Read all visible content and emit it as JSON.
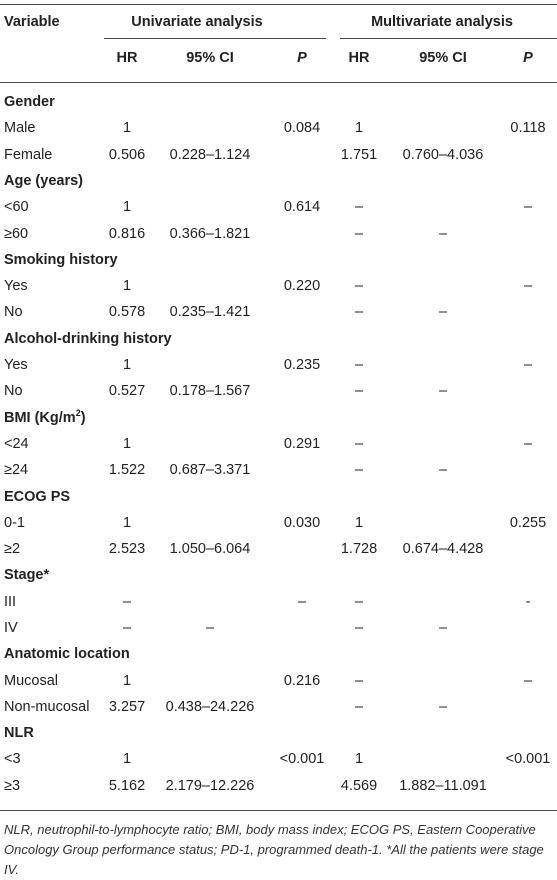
{
  "header": {
    "variable": "Variable",
    "univariate": "Univariate analysis",
    "multivariate": "Multivariate analysis",
    "hr": "HR",
    "ci": "95% CI",
    "p": "P"
  },
  "groups": [
    {
      "title": "Gender",
      "rows": [
        {
          "label": "Male",
          "u_hr": "1",
          "u_ci": "",
          "u_p": "0.084",
          "m_hr": "1",
          "m_ci": "",
          "m_p": "0.118"
        },
        {
          "label": "Female",
          "u_hr": "0.506",
          "u_ci": "0.228–1.124",
          "u_p": "",
          "m_hr": "1.751",
          "m_ci": "0.760–4.036",
          "m_p": ""
        }
      ]
    },
    {
      "title": "Age (years)",
      "rows": [
        {
          "label": "<60",
          "u_hr": "1",
          "u_ci": "",
          "u_p": "0.614",
          "m_hr": "–",
          "m_ci": "",
          "m_p": "–"
        },
        {
          "label": "≥60",
          "u_hr": "0.816",
          "u_ci": "0.366–1.821",
          "u_p": "",
          "m_hr": "–",
          "m_ci": "–",
          "m_p": ""
        }
      ]
    },
    {
      "title": "Smoking history",
      "rows": [
        {
          "label": "Yes",
          "u_hr": "1",
          "u_ci": "",
          "u_p": "0.220",
          "m_hr": "–",
          "m_ci": "",
          "m_p": "–"
        },
        {
          "label": "No",
          "u_hr": "0.578",
          "u_ci": "0.235–1.421",
          "u_p": "",
          "m_hr": "–",
          "m_ci": "–",
          "m_p": ""
        }
      ]
    },
    {
      "title": "Alcohol-drinking history",
      "rows": [
        {
          "label": "Yes",
          "u_hr": "1",
          "u_ci": "",
          "u_p": "0.235",
          "m_hr": "–",
          "m_ci": "",
          "m_p": "–"
        },
        {
          "label": "No",
          "u_hr": "0.527",
          "u_ci": "0.178–1.567",
          "u_p": "",
          "m_hr": "–",
          "m_ci": "–",
          "m_p": ""
        }
      ]
    },
    {
      "title": "BMI (Kg/m",
      "title_sup": "2",
      "title_end": ")",
      "rows": [
        {
          "label": "<24",
          "u_hr": "1",
          "u_ci": "",
          "u_p": "0.291",
          "m_hr": "–",
          "m_ci": "",
          "m_p": "–"
        },
        {
          "label": "≥24",
          "u_hr": "1.522",
          "u_ci": "0.687–3.371",
          "u_p": "",
          "m_hr": "–",
          "m_ci": "–",
          "m_p": ""
        }
      ]
    },
    {
      "title": "ECOG PS",
      "rows": [
        {
          "label": "0-1",
          "u_hr": "1",
          "u_ci": "",
          "u_p": "0.030",
          "m_hr": "1",
          "m_ci": "",
          "m_p": "0.255"
        },
        {
          "label": "≥2",
          "u_hr": "2.523",
          "u_ci": "1.050–6.064",
          "u_p": "",
          "m_hr": "1.728",
          "m_ci": "0.674–4.428",
          "m_p": ""
        }
      ]
    },
    {
      "title": "Stage*",
      "rows": [
        {
          "label": "III",
          "u_hr": "–",
          "u_ci": "",
          "u_p": "–",
          "m_hr": "–",
          "m_ci": "",
          "m_p": "-"
        },
        {
          "label": "IV",
          "u_hr": "–",
          "u_ci": "–",
          "u_p": "",
          "m_hr": "–",
          "m_ci": "–",
          "m_p": ""
        }
      ]
    },
    {
      "title": "Anatomic location",
      "rows": [
        {
          "label": "Mucosal",
          "u_hr": "1",
          "u_ci": "",
          "u_p": "0.216",
          "m_hr": "–",
          "m_ci": "",
          "m_p": "–"
        },
        {
          "label": "Non-mucosal",
          "u_hr": "3.257",
          "u_ci": "0.438–24.226",
          "u_p": "",
          "m_hr": "–",
          "m_ci": "–",
          "m_p": ""
        }
      ]
    },
    {
      "title": "NLR",
      "rows": [
        {
          "label": "<3",
          "u_hr": "1",
          "u_ci": "",
          "u_p": "<0.001",
          "m_hr": "1",
          "m_ci": "",
          "m_p": "<0.001"
        },
        {
          "label": "≥3",
          "u_hr": "5.162",
          "u_ci": "2.179–12.226",
          "u_p": "",
          "m_hr": "4.569",
          "m_ci": "1.882–11.091",
          "m_p": ""
        }
      ]
    }
  ],
  "footnote": "NLR, neutrophil-to-lymphocyte ratio; BMI, body mass index; ECOG PS, Eastern Cooperative Oncology Group performance status; PD-1, programmed death-1. *All the patients were stage IV."
}
